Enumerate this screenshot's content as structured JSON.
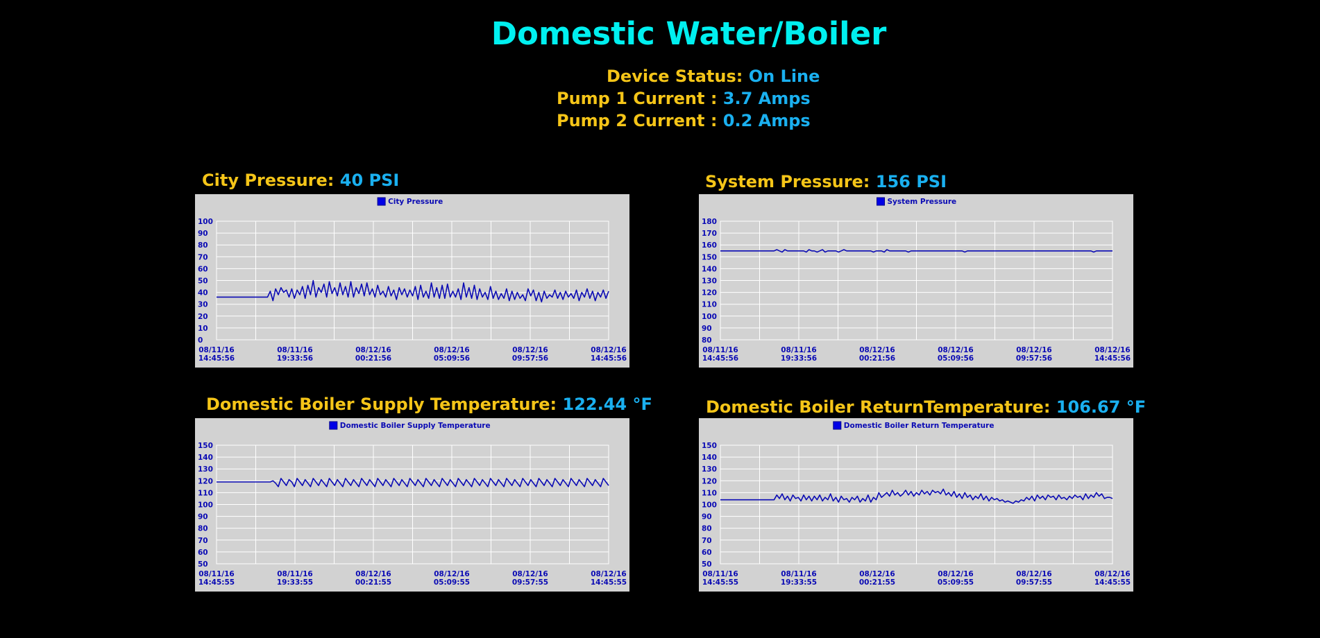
{
  "page": {
    "title": "Domestic Water/Boiler"
  },
  "status": [
    {
      "label": "Device Status:",
      "value": "On Line"
    },
    {
      "label": "Pump 1 Current :",
      "value": "3.7 Amps"
    },
    {
      "label": "Pump 2 Current :",
      "value": "0.2 Amps"
    }
  ],
  "colors": {
    "title": "#00f0f0",
    "label": "#f5c518",
    "value": "#1ab0f0",
    "panel": "#d2d2d2",
    "line": "#0a0ab4"
  },
  "chart_data": [
    {
      "type": "line",
      "heading": {
        "label": "City Pressure:",
        "value": "40 PSI"
      },
      "legend": "City Pressure",
      "yticks": [
        0,
        10,
        20,
        30,
        40,
        50,
        60,
        70,
        80,
        90,
        100
      ],
      "ylim": [
        0,
        100
      ],
      "xticks": [
        [
          "08/11/16",
          "14:45:56"
        ],
        [
          "08/11/16",
          "19:33:56"
        ],
        [
          "08/12/16",
          "00:21:56"
        ],
        [
          "08/12/16",
          "05:09:56"
        ],
        [
          "08/12/16",
          "09:57:56"
        ],
        [
          "08/12/16",
          "14:45:56"
        ]
      ],
      "series": [
        {
          "values": [
            36,
            36,
            36,
            36,
            36,
            36,
            36,
            36,
            36,
            36,
            36,
            36,
            36,
            36,
            36,
            36,
            36,
            36,
            36,
            36,
            41,
            33,
            43,
            38,
            44,
            40,
            42,
            36,
            43,
            35,
            42,
            38,
            45,
            35,
            46,
            38,
            50,
            36,
            44,
            40,
            47,
            36,
            49,
            39,
            44,
            37,
            48,
            38,
            45,
            36,
            49,
            36,
            44,
            39,
            47,
            37,
            48,
            38,
            43,
            36,
            46,
            38,
            41,
            36,
            45,
            37,
            42,
            34,
            44,
            38,
            43,
            36,
            42,
            37,
            45,
            34,
            46,
            36,
            41,
            35,
            48,
            36,
            44,
            35,
            46,
            35,
            47,
            36,
            41,
            36,
            43,
            34,
            48,
            36,
            44,
            35,
            46,
            34,
            43,
            36,
            40,
            34,
            45,
            35,
            41,
            34,
            39,
            35,
            43,
            33,
            41,
            34,
            40,
            35,
            38,
            33,
            43,
            37,
            42,
            33,
            40,
            32,
            41,
            35,
            38,
            36,
            42,
            35,
            40,
            34,
            41,
            36,
            39,
            35,
            42,
            33,
            40,
            36,
            43,
            35,
            41,
            33,
            40,
            36,
            42,
            35,
            41
          ]
        }
      ]
    },
    {
      "type": "line",
      "heading": {
        "label": "System Pressure:",
        "value": "156 PSI"
      },
      "legend": "System Pressure",
      "yticks": [
        80,
        90,
        100,
        110,
        120,
        130,
        140,
        150,
        160,
        170,
        180
      ],
      "ylim": [
        80,
        180
      ],
      "xticks": [
        [
          "08/11/16",
          "14:45:56"
        ],
        [
          "08/11/16",
          "19:33:56"
        ],
        [
          "08/12/16",
          "00:21:56"
        ],
        [
          "08/12/16",
          "05:09:56"
        ],
        [
          "08/12/16",
          "09:57:56"
        ],
        [
          "08/12/16",
          "14:45:56"
        ]
      ],
      "series": [
        {
          "values": [
            155,
            155,
            155,
            155,
            155,
            155,
            155,
            155,
            155,
            155,
            155,
            155,
            155,
            155,
            155,
            155,
            155,
            155,
            155,
            155,
            155,
            156,
            155,
            154,
            156,
            155,
            155,
            155,
            155,
            155,
            155,
            155,
            154,
            156,
            155,
            155,
            154,
            155,
            156,
            154,
            155,
            155,
            155,
            155,
            154,
            155,
            156,
            155,
            155,
            155,
            155,
            155,
            155,
            155,
            155,
            155,
            155,
            154,
            155,
            155,
            155,
            154,
            156,
            155,
            155,
            155,
            155,
            155,
            155,
            155,
            154,
            155,
            155,
            155,
            155,
            155,
            155,
            155,
            155,
            155,
            155,
            155,
            155,
            155,
            155,
            155,
            155,
            155,
            155,
            155,
            155,
            154,
            155,
            155,
            155,
            155,
            155,
            155,
            155,
            155,
            155,
            155,
            155,
            155,
            155,
            155,
            155,
            155,
            155,
            155,
            155,
            155,
            155,
            155,
            155,
            155,
            155,
            155,
            155,
            155,
            155,
            155,
            155,
            155,
            155,
            155,
            155,
            155,
            155,
            155,
            155,
            155,
            155,
            155,
            155,
            155,
            155,
            155,
            155,
            154,
            155,
            155,
            155,
            155,
            155,
            155,
            155
          ]
        }
      ]
    },
    {
      "type": "line",
      "heading": {
        "label": "Domestic Boiler Supply Temperature:",
        "value": "122.44 °F"
      },
      "legend": "Domestic Boiler Supply Temperature",
      "yticks": [
        50,
        60,
        70,
        80,
        90,
        100,
        110,
        120,
        130,
        140,
        150
      ],
      "ylim": [
        50,
        150
      ],
      "xticks": [
        [
          "08/11/16",
          "14:45:55"
        ],
        [
          "08/11/16",
          "19:33:55"
        ],
        [
          "08/12/16",
          "00:21:55"
        ],
        [
          "08/12/16",
          "05:09:55"
        ],
        [
          "08/12/16",
          "09:57:55"
        ],
        [
          "08/12/16",
          "14:45:55"
        ]
      ],
      "series": [
        {
          "values": [
            119,
            119,
            119,
            119,
            119,
            119,
            119,
            119,
            119,
            119,
            119,
            119,
            119,
            119,
            119,
            119,
            119,
            119,
            119,
            119,
            119,
            120,
            118,
            115,
            122,
            119,
            116,
            121,
            119,
            115,
            122,
            119,
            116,
            121,
            118,
            115,
            122,
            119,
            116,
            121,
            118,
            115,
            122,
            119,
            116,
            121,
            118,
            115,
            122,
            119,
            116,
            121,
            118,
            115,
            122,
            119,
            116,
            121,
            118,
            115,
            122,
            119,
            116,
            121,
            118,
            115,
            122,
            119,
            116,
            121,
            118,
            115,
            122,
            119,
            116,
            121,
            118,
            115,
            122,
            119,
            116,
            121,
            118,
            115,
            122,
            119,
            116,
            121,
            118,
            115,
            122,
            119,
            116,
            121,
            118,
            115,
            122,
            119,
            116,
            121,
            118,
            115,
            122,
            119,
            116,
            121,
            118,
            115,
            122,
            119,
            116,
            121,
            118,
            115,
            122,
            119,
            116,
            121,
            118,
            115,
            122,
            119,
            116,
            121,
            118,
            115,
            122,
            119,
            116,
            121,
            118,
            115,
            122,
            119,
            116,
            121,
            118,
            115,
            122,
            119,
            116,
            121,
            118,
            115,
            122,
            119,
            116
          ]
        }
      ]
    },
    {
      "type": "line",
      "heading": {
        "label": "Domestic Boiler ReturnTemperature:",
        "value": "106.67 °F"
      },
      "legend": "Domestic Boiler Return Temperature",
      "yticks": [
        50,
        60,
        70,
        80,
        90,
        100,
        110,
        120,
        130,
        140,
        150
      ],
      "ylim": [
        50,
        150
      ],
      "xticks": [
        [
          "08/11/16",
          "14:45:55"
        ],
        [
          "08/11/16",
          "19:33:55"
        ],
        [
          "08/12/16",
          "00:21:55"
        ],
        [
          "08/12/16",
          "05:09:55"
        ],
        [
          "08/12/16",
          "09:57:55"
        ],
        [
          "08/12/16",
          "14:45:55"
        ]
      ],
      "series": [
        {
          "values": [
            104,
            104,
            104,
            104,
            104,
            104,
            104,
            104,
            104,
            104,
            104,
            104,
            104,
            104,
            104,
            104,
            104,
            104,
            104,
            104,
            104,
            108,
            105,
            109,
            104,
            107,
            103,
            108,
            105,
            106,
            103,
            108,
            104,
            107,
            103,
            107,
            104,
            108,
            103,
            106,
            104,
            109,
            103,
            106,
            102,
            107,
            104,
            105,
            102,
            106,
            104,
            107,
            102,
            105,
            103,
            108,
            102,
            106,
            104,
            110,
            106,
            108,
            110,
            107,
            112,
            108,
            110,
            107,
            109,
            112,
            108,
            111,
            107,
            110,
            108,
            112,
            109,
            111,
            108,
            112,
            110,
            111,
            109,
            113,
            108,
            110,
            107,
            111,
            106,
            109,
            105,
            110,
            106,
            108,
            104,
            107,
            105,
            109,
            104,
            107,
            103,
            106,
            104,
            105,
            103,
            104,
            102,
            103,
            102,
            101,
            103,
            102,
            104,
            103,
            106,
            104,
            107,
            103,
            108,
            105,
            107,
            104,
            108,
            106,
            107,
            104,
            108,
            105,
            106,
            104,
            107,
            105,
            108,
            106,
            107,
            104,
            109,
            105,
            108,
            106,
            110,
            107,
            109,
            105,
            106,
            106,
            105
          ]
        }
      ]
    }
  ]
}
